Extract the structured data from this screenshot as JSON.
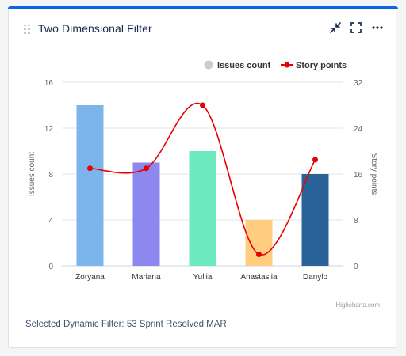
{
  "gadget": {
    "title": "Two Dimensional Filter",
    "footer": "Selected Dynamic Filter: 53 Sprint Resolved MAR",
    "credits": "Highcharts.com"
  },
  "chart_data": {
    "type": "bar",
    "categories": [
      "Zoryana",
      "Mariana",
      "Yuliia",
      "Anastasiia",
      "Danylo"
    ],
    "series": [
      {
        "name": "Issues count",
        "type": "bar",
        "axis": "left",
        "values": [
          14,
          9,
          10,
          4,
          8
        ],
        "colors": [
          "#7cb5ec",
          "#8d87f0",
          "#6eeac1",
          "#ffcc80",
          "#2a6399"
        ]
      },
      {
        "name": "Story points",
        "type": "line",
        "axis": "right",
        "values": [
          17,
          17,
          28,
          2,
          18.5
        ],
        "color": "#e60000"
      }
    ],
    "ylabel": "Issues count",
    "y2label": "Story points",
    "ylim": [
      0,
      16
    ],
    "y2lim": [
      0,
      32
    ],
    "yticks": [
      "0",
      "4",
      "8",
      "12",
      "16"
    ],
    "y2ticks": [
      "0",
      "8",
      "16",
      "24",
      "32"
    ],
    "legend_position": "top-right",
    "grid": true
  }
}
